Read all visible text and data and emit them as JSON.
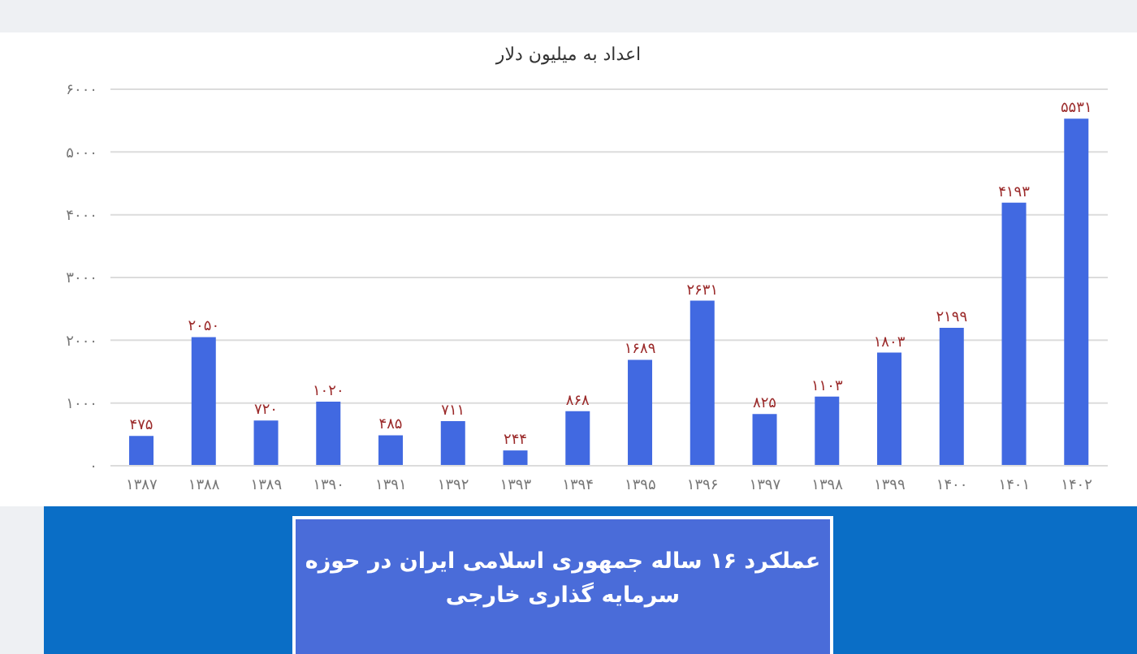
{
  "chart_data": {
    "type": "bar",
    "title": "عملکرد ۱۶ ساله جمهوری اسلامی ایران در حوزه سرمایه گذاری خارجی",
    "subtitle": "اعداد به میلیون دلار",
    "categories": [
      "۱۳۸۷",
      "۱۳۸۸",
      "۱۳۸۹",
      "۱۳۹۰",
      "۱۳۹۱",
      "۱۳۹۲",
      "۱۳۹۳",
      "۱۳۹۴",
      "۱۳۹۵",
      "۱۳۹۶",
      "۱۳۹۷",
      "۱۳۹۸",
      "۱۳۹۹",
      "۱۴۰۰",
      "۱۴۰۱",
      "۱۴۰۲"
    ],
    "values": [
      475,
      2050,
      720,
      1020,
      485,
      711,
      244,
      868,
      1689,
      2631,
      825,
      1103,
      1803,
      2199,
      4193,
      5531
    ],
    "value_labels": [
      "۴۷۵",
      "۲۰۵۰",
      "۷۲۰",
      "۱۰۲۰",
      "۴۸۵",
      "۷۱۱",
      "۲۴۴",
      "۸۶۸",
      "۱۶۸۹",
      "۲۶۳۱",
      "۸۲۵",
      "۱۱۰۳",
      "۱۸۰۳",
      "۲۱۹۹",
      "۴۱۹۳",
      "۵۵۳۱"
    ],
    "color": "#4169e1",
    "ylim": [
      0,
      6000
    ],
    "yticks": [
      {
        "value": 0,
        "label": "۰"
      },
      {
        "value": 1000,
        "label": "۱۰۰۰"
      },
      {
        "value": 2000,
        "label": "۲۰۰۰"
      },
      {
        "value": 3000,
        "label": "۳۰۰۰"
      },
      {
        "value": 4000,
        "label": "۴۰۰۰"
      },
      {
        "value": 5000,
        "label": "۵۰۰۰"
      },
      {
        "value": 6000,
        "label": "۶۰۰۰"
      }
    ],
    "grid": "y"
  }
}
